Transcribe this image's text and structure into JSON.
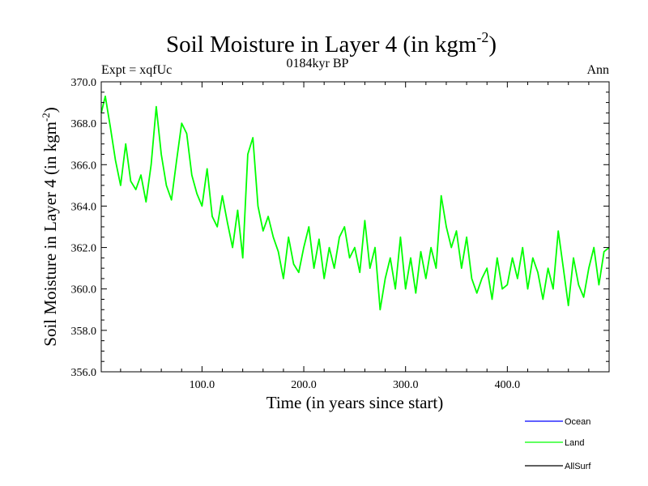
{
  "chart_data": {
    "type": "line",
    "title": "Soil Moisture in Layer 4 (in kgm",
    "title_sup": "-2",
    "title_close": ")",
    "subtitle_left": "Expt = xqfUc",
    "subtitle_center": "0184kyr BP",
    "subtitle_right": "Ann",
    "xlabel": "Time (in years since start)",
    "ylabel": "Soil Moisture in Layer 4 (in kgm",
    "ylabel_sup": "-2",
    "ylabel_close": ")",
    "xlim": [
      1,
      500
    ],
    "ylim": [
      356,
      370
    ],
    "x_ticks": [
      100,
      200,
      300,
      400
    ],
    "x_tick_labels": [
      "100.0",
      "200.0",
      "300.0",
      "400.0"
    ],
    "y_ticks": [
      356,
      358,
      360,
      362,
      364,
      366,
      368,
      370
    ],
    "y_tick_labels": [
      "356.0",
      "358.0",
      "360.0",
      "362.0",
      "364.0",
      "366.0",
      "368.0",
      "370.0"
    ],
    "legend": [
      {
        "name": "Ocean",
        "color": "#0000ff"
      },
      {
        "name": "Land",
        "color": "#00ff00"
      },
      {
        "name": "AllSurf",
        "color": "#000000"
      }
    ],
    "series": [
      {
        "name": "Land",
        "color": "#00ff00",
        "x": [
          1,
          5,
          10,
          15,
          20,
          25,
          30,
          35,
          40,
          45,
          50,
          55,
          60,
          65,
          70,
          75,
          80,
          85,
          90,
          95,
          100,
          105,
          110,
          115,
          120,
          125,
          130,
          135,
          140,
          145,
          150,
          155,
          160,
          165,
          170,
          175,
          180,
          185,
          190,
          195,
          200,
          205,
          210,
          215,
          220,
          225,
          230,
          235,
          240,
          245,
          250,
          255,
          260,
          265,
          270,
          275,
          280,
          285,
          290,
          295,
          300,
          305,
          310,
          315,
          320,
          325,
          330,
          335,
          340,
          345,
          350,
          355,
          360,
          365,
          370,
          375,
          380,
          385,
          390,
          395,
          400,
          405,
          410,
          415,
          420,
          425,
          430,
          435,
          440,
          445,
          450,
          455,
          460,
          465,
          470,
          475,
          480,
          485,
          490,
          495,
          500
        ],
        "values": [
          368.5,
          369.3,
          367.8,
          366.2,
          365.0,
          367.0,
          365.2,
          364.8,
          365.5,
          364.2,
          366.0,
          368.8,
          366.5,
          365.0,
          364.3,
          366.2,
          368.0,
          367.5,
          365.5,
          364.6,
          364.0,
          365.8,
          363.5,
          363.0,
          364.5,
          363.2,
          362.0,
          363.8,
          361.5,
          366.5,
          367.3,
          364.0,
          362.8,
          363.5,
          362.5,
          361.8,
          360.5,
          362.5,
          361.2,
          360.8,
          362.0,
          363.0,
          361.0,
          362.4,
          360.5,
          362.0,
          361.0,
          362.5,
          363.0,
          361.5,
          362.0,
          360.8,
          363.3,
          361.0,
          362.0,
          359.0,
          360.5,
          361.5,
          360.0,
          362.5,
          360.0,
          361.5,
          359.8,
          361.8,
          360.5,
          362.0,
          361.0,
          364.5,
          363.0,
          362.0,
          362.8,
          361.0,
          362.5,
          360.5,
          359.8,
          360.5,
          361.0,
          359.5,
          361.5,
          360.0,
          360.2,
          361.5,
          360.5,
          362.0,
          360.0,
          361.5,
          360.8,
          359.5,
          361.0,
          360.0,
          362.8,
          361.0,
          359.2,
          361.5,
          360.2,
          359.6,
          361.0,
          362.0,
          360.2,
          361.8,
          362.0
        ]
      },
      {
        "name": "Ocean",
        "color": "#0000ff",
        "x": [],
        "values": []
      },
      {
        "name": "AllSurf",
        "color": "#000000",
        "x": [],
        "values": []
      }
    ]
  }
}
